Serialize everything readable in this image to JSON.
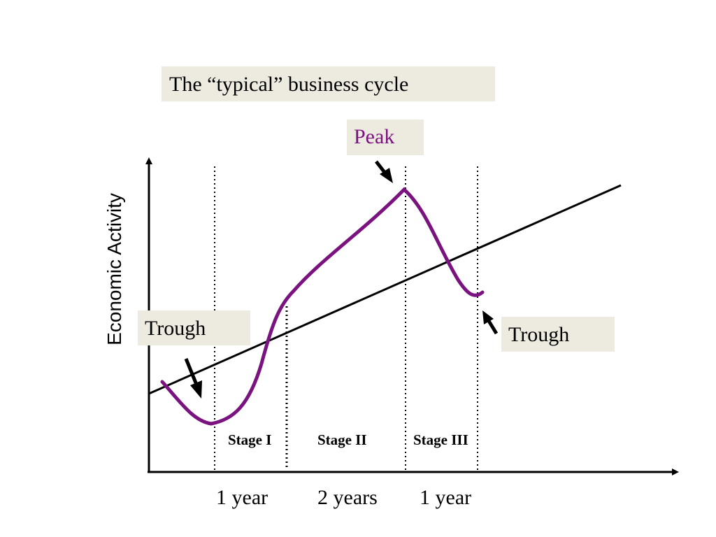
{
  "title": "The “typical” business cycle",
  "peak_label": "Peak",
  "trough_left_label": "Trough",
  "trough_right_label": "Trough",
  "y_axis_label": "Economic Activity",
  "stages": [
    "Stage I",
    "Stage II",
    "Stage III"
  ],
  "durations": [
    "1 year",
    "2 years",
    "1 year"
  ],
  "colors": {
    "cycle_curve": "#7a1380",
    "label_box": "#edeae0",
    "peak_text": "#7a1380",
    "axes": "#000000"
  }
}
